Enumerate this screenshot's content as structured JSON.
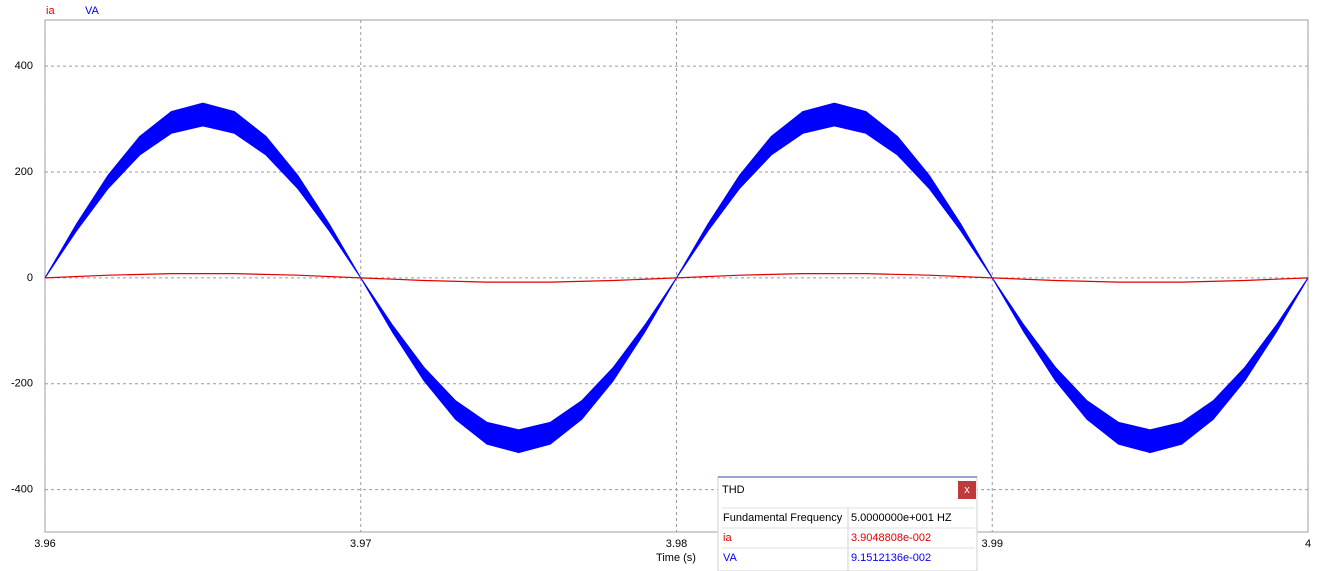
{
  "chart_data": {
    "type": "line",
    "x_label": "Time (s)",
    "xlim": [
      3.96,
      4
    ],
    "xticks": [
      3.96,
      3.97,
      3.98,
      3.99,
      4
    ],
    "ylim": [
      -480,
      487
    ],
    "yticks": [
      -400,
      -200,
      0,
      200,
      400
    ],
    "grid": true,
    "series": [
      {
        "name": "ia",
        "color": "#e00000",
        "x": [
          3.96,
          3.962,
          3.964,
          3.966,
          3.968,
          3.97,
          3.972,
          3.974,
          3.976,
          3.978,
          3.98,
          3.982,
          3.984,
          3.986,
          3.988,
          3.99,
          3.992,
          3.994,
          3.996,
          3.998,
          4
        ],
        "values": [
          0,
          5,
          8,
          8,
          5,
          0,
          -5,
          -8,
          -8,
          -5,
          0,
          5,
          8,
          8,
          5,
          0,
          -5,
          -8,
          -8,
          -5,
          0
        ]
      },
      {
        "name": "VA",
        "color": "#0000ff",
        "x": [
          3.96,
          3.961,
          3.962,
          3.963,
          3.964,
          3.965,
          3.966,
          3.967,
          3.968,
          3.969,
          3.97,
          3.971,
          3.972,
          3.973,
          3.974,
          3.975,
          3.976,
          3.977,
          3.978,
          3.979,
          3.98,
          3.981,
          3.982,
          3.983,
          3.984,
          3.985,
          3.986,
          3.987,
          3.988,
          3.989,
          3.99,
          3.991,
          3.992,
          3.993,
          3.994,
          3.995,
          3.996,
          3.997,
          3.998,
          3.999,
          4
        ],
        "values": [
          0,
          102,
          194,
          267,
          314,
          330,
          314,
          267,
          194,
          102,
          0,
          -102,
          -194,
          -267,
          -314,
          -330,
          -314,
          -267,
          -194,
          -102,
          0,
          102,
          194,
          267,
          314,
          330,
          314,
          267,
          194,
          102,
          0,
          -102,
          -194,
          -267,
          -314,
          -330,
          -314,
          -267,
          -194,
          -102,
          0
        ],
        "inner": [
          0,
          89,
          169,
          232,
          273,
          287,
          273,
          232,
          169,
          89,
          0,
          -89,
          -169,
          -232,
          -273,
          -287,
          -273,
          -232,
          -169,
          -89,
          0,
          89,
          169,
          232,
          273,
          287,
          273,
          232,
          169,
          89,
          0,
          -89,
          -169,
          -232,
          -273,
          -287,
          -273,
          -232,
          -169,
          -89,
          0
        ]
      }
    ]
  },
  "thd_panel": {
    "title": "THD",
    "close": "x",
    "rows": [
      [
        "Fundamental Frequency",
        "5.0000000e+001 HZ"
      ],
      [
        "ia",
        "3.9048808e-002"
      ],
      [
        "VA",
        "9.1512136e-002"
      ]
    ]
  }
}
